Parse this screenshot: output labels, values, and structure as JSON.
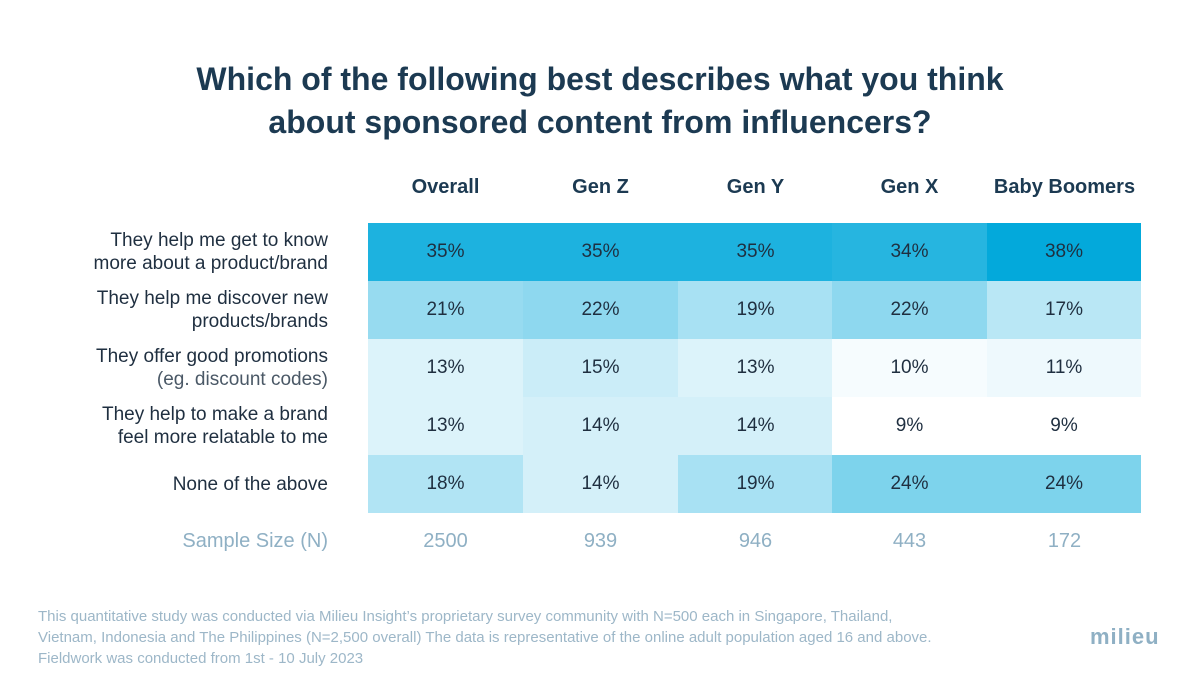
{
  "title_lines": [
    "Which of the following best describes what you think",
    "about sponsored content from influencers?"
  ],
  "chart_data": {
    "type": "heatmap",
    "columns": [
      "Overall",
      "Gen Z",
      "Gen Y",
      "Gen X",
      "Baby Boomers"
    ],
    "rows": [
      {
        "label_lines": [
          "They help me get to know",
          "more about a product/brand"
        ],
        "sub_line": "",
        "values": [
          35,
          35,
          35,
          34,
          38
        ],
        "labels": [
          "35%",
          "35%",
          "35%",
          "34%",
          "38%"
        ]
      },
      {
        "label_lines": [
          "They help me discover new",
          "products/brands"
        ],
        "sub_line": "",
        "values": [
          21,
          22,
          19,
          22,
          17
        ],
        "labels": [
          "21%",
          "22%",
          "19%",
          "22%",
          "17%"
        ]
      },
      {
        "label_lines": [
          "They offer good promotions"
        ],
        "sub_line": "(eg. discount codes)",
        "values": [
          13,
          15,
          13,
          10,
          11
        ],
        "labels": [
          "13%",
          "15%",
          "13%",
          "10%",
          "11%"
        ]
      },
      {
        "label_lines": [
          "They help to make a brand",
          "feel more relatable to me"
        ],
        "sub_line": "",
        "values": [
          13,
          14,
          14,
          9,
          9
        ],
        "labels": [
          "13%",
          "14%",
          "14%",
          "9%",
          "9%"
        ]
      },
      {
        "label_lines": [
          "None of the above"
        ],
        "sub_line": "",
        "values": [
          18,
          14,
          19,
          24,
          24
        ],
        "labels": [
          "18%",
          "14%",
          "19%",
          "24%",
          "24%"
        ]
      }
    ],
    "sample_size_label": "Sample Size (N)",
    "sample_sizes": [
      "2500",
      "939",
      "946",
      "443",
      "172"
    ],
    "color_scale": {
      "low": "#ffffff",
      "high": "#03a9db",
      "min": 9,
      "max": 38
    }
  },
  "footnote_lines": [
    "This quantitative study was conducted via Milieu Insight’s proprietary survey community with N=500 each in Singapore, Thailand,",
    "Vietnam, Indonesia and The Philippines (N=2,500 overall) The data is representative of the online adult population aged 16 and above.",
    "Fieldwork was conducted from 1st  - 10 July 2023"
  ],
  "logo_text": "milieu"
}
